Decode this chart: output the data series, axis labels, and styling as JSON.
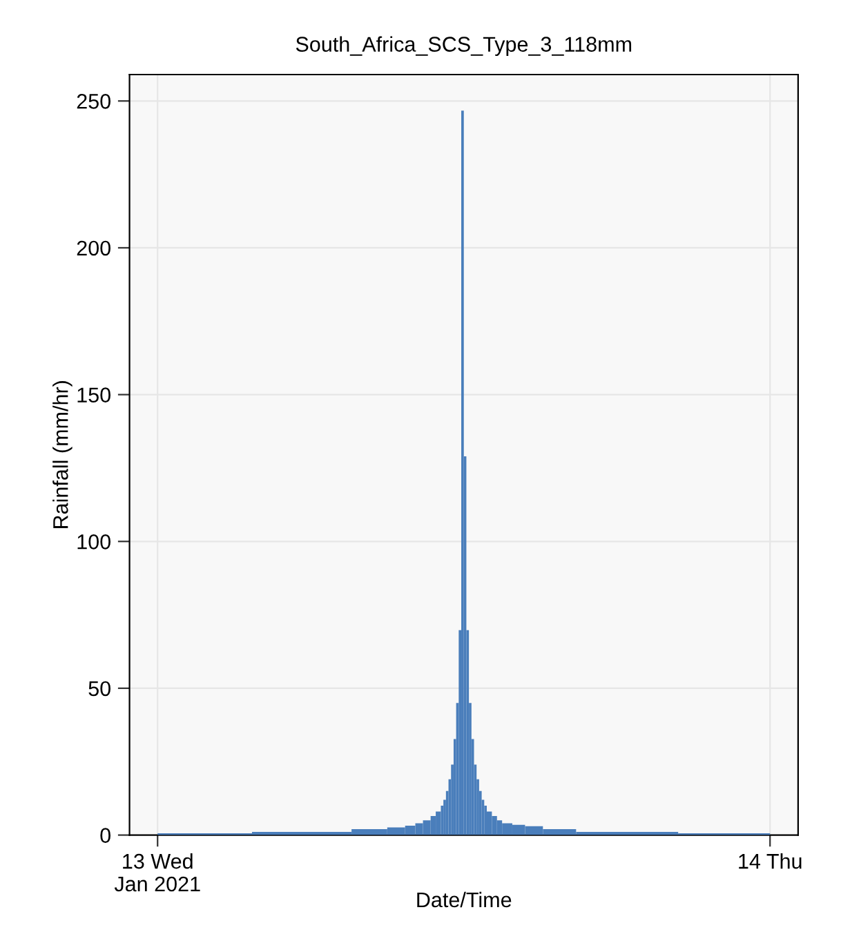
{
  "chart_data": {
    "type": "histogram",
    "title": "South_Africa_SCS_Type_3_118mm",
    "xlabel": "Date/Time",
    "ylabel": "Rainfall (mm/hr)",
    "bins": [
      "2021-01-13T00:00",
      "2021-01-13T03:42",
      "2021-01-13T07:36",
      "2021-01-13T09:00",
      "2021-01-13T09:42",
      "2021-01-13T10:06",
      "2021-01-13T10:24",
      "2021-01-13T10:42",
      "2021-01-13T10:54",
      "2021-01-13T11:06",
      "2021-01-13T11:12",
      "2021-01-13T11:18",
      "2021-01-13T11:24",
      "2021-01-13T11:30",
      "2021-01-13T11:36",
      "2021-01-13T11:42",
      "2021-01-13T11:48",
      "2021-01-13T11:54",
      "2021-01-13T12:00",
      "2021-01-13T12:06",
      "2021-01-13T12:12",
      "2021-01-13T12:18",
      "2021-01-13T12:24",
      "2021-01-13T12:30",
      "2021-01-13T12:36",
      "2021-01-13T12:42",
      "2021-01-13T12:48",
      "2021-01-13T12:54",
      "2021-01-13T13:06",
      "2021-01-13T13:18",
      "2021-01-13T13:30",
      "2021-01-13T13:54",
      "2021-01-13T14:24",
      "2021-01-13T15:06",
      "2021-01-13T16:24",
      "2021-01-13T20:24",
      "2021-01-14T00:00"
    ],
    "values": [
      0.6,
      1.1,
      2.0,
      2.6,
      3.2,
      4,
      5,
      6.5,
      8,
      10,
      12,
      15,
      19,
      24,
      32.7,
      45,
      69.8,
      246.7,
      129,
      69.8,
      45,
      32.7,
      24,
      19,
      15,
      12,
      10,
      8,
      6.5,
      5,
      4,
      3.5,
      3.0,
      2.0,
      1.1,
      0.6
    ],
    "color": "#4a7ebb",
    "xlim": [
      "2021-01-12T22:54",
      "2021-01-14T01:06"
    ],
    "xticks": [
      {
        "value": "2021-01-13",
        "label": "13 Wed\nJan 2021"
      },
      {
        "value": "2021-01-14",
        "label": "14 Thu"
      }
    ],
    "ylim": [
      0,
      259
    ],
    "yticks": [
      0,
      50,
      100,
      150,
      200,
      250
    ],
    "grid": true
  }
}
